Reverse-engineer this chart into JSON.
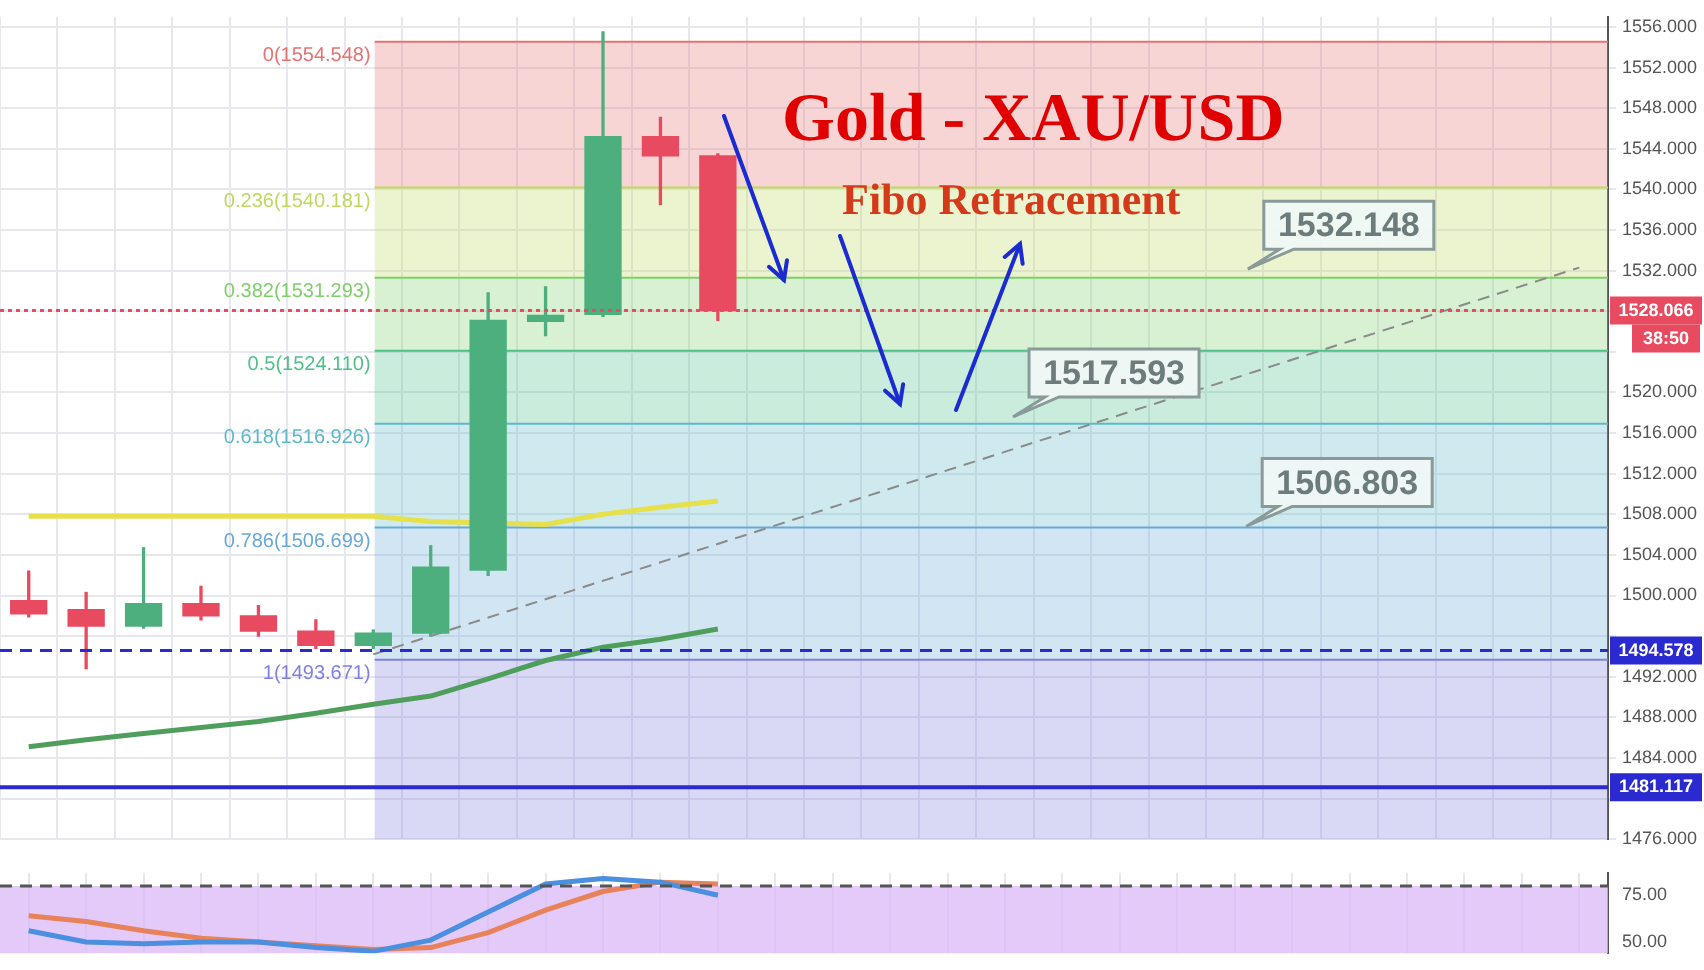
{
  "chart_data": [
    {
      "type": "candlestick",
      "title": "Gold - XAU/USD",
      "subtitle": "Fibo Retracement",
      "categories": [
        null,
        null,
        null,
        null,
        null,
        null,
        null,
        null,
        null,
        null,
        null,
        null,
        null,
        null,
        null,
        null,
        null,
        null,
        null,
        null,
        null,
        null,
        null,
        null,
        null,
        null,
        null,
        null
      ],
      "ohlc": [
        [
          1499.5,
          1502.4,
          1497.9,
          1498.2
        ],
        [
          1498.6,
          1500.3,
          1492.8,
          1497.0
        ],
        [
          1497.0,
          1504.7,
          1496.8,
          1499.2
        ],
        [
          1499.2,
          1500.9,
          1497.6,
          1498.0
        ],
        [
          1498.0,
          1499.0,
          1496.0,
          1496.5
        ],
        [
          1496.5,
          1497.6,
          1494.8,
          1495.1
        ],
        [
          1495.1,
          1496.6,
          1494.8,
          1496.3
        ],
        [
          1496.3,
          1504.9,
          1496.0,
          1502.8
        ],
        [
          1502.5,
          1529.8,
          1502.0,
          1527.1
        ],
        [
          1527.0,
          1530.4,
          1525.6,
          1527.6
        ],
        [
          1527.7,
          1555.5,
          1527.5,
          1545.2
        ],
        [
          1545.2,
          1547.1,
          1538.5,
          1543.3
        ],
        [
          1543.3,
          1543.5,
          1527.1,
          1528.066
        ],
        null,
        null,
        null,
        null,
        null,
        null,
        null,
        null,
        null,
        null,
        null,
        null,
        null,
        null,
        null
      ],
      "colors": [
        "#e84a5f",
        "#e84a5f",
        "#4caf7d",
        "#e84a5f",
        "#e84a5f",
        "#e84a5f",
        "#4caf7d",
        "#4caf7d",
        "#4caf7d",
        "#4caf7d",
        "#4caf7d",
        "#e84a5f",
        "#e84a5f",
        null,
        null,
        null,
        null,
        null,
        null,
        null,
        null,
        null,
        null,
        null,
        null,
        null,
        null,
        null
      ],
      "series": [
        {
          "type": "line",
          "color": "#e6e04a",
          "values": [
            1507.8,
            1507.8,
            1507.8,
            1507.8,
            1507.8,
            1507.8,
            1507.8,
            1507.3,
            null,
            1507.0,
            1508.0,
            1508.7,
            1509.3,
            null,
            null,
            null,
            null,
            null,
            null,
            null,
            null,
            null,
            null,
            null,
            null,
            null,
            null,
            null
          ]
        },
        {
          "type": "line",
          "color": "#4f9e5c",
          "values": [
            1485.1,
            1485.8,
            1486.4,
            1487.0,
            1487.6,
            1488.4,
            1489.3,
            1490.1,
            1491.8,
            1493.6,
            1494.9,
            1495.7,
            1496.7,
            null,
            null,
            null,
            null,
            null,
            null,
            null,
            null,
            null,
            null,
            null,
            null,
            null,
            null,
            null
          ]
        },
        {
          "type": "line",
          "color": "#8a8a8a",
          "line_style": "dashed",
          "values": [
            null,
            null,
            null,
            null,
            null,
            null,
            1494.2,
            null,
            null,
            null,
            null,
            null,
            null,
            null,
            null,
            null,
            null,
            null,
            null,
            null,
            null,
            null,
            null,
            null,
            null,
            null,
            null,
            1532.3
          ]
        }
      ],
      "ylim": [
        1476,
        1557
      ],
      "yticks": [
        {
          "value": 1476,
          "label": "1476.000"
        },
        {
          "value": 1480,
          "label": null
        },
        {
          "value": 1484,
          "label": "1484.000"
        },
        {
          "value": 1488,
          "label": "1488.000"
        },
        {
          "value": 1492,
          "label": "1492.000"
        },
        {
          "value": 1496,
          "label": null
        },
        {
          "value": 1500,
          "label": "1500.000"
        },
        {
          "value": 1504,
          "label": "1504.000"
        },
        {
          "value": 1508,
          "label": "1508.000"
        },
        {
          "value": 1512,
          "label": "1512.000"
        },
        {
          "value": 1516,
          "label": "1516.000"
        },
        {
          "value": 1520,
          "label": "1520.000"
        },
        {
          "value": 1524,
          "label": null
        },
        {
          "value": 1528,
          "label": null
        },
        {
          "value": 1532,
          "label": "1532.000"
        },
        {
          "value": 1536,
          "label": "1536.000"
        },
        {
          "value": 1540,
          "label": "1540.000"
        },
        {
          "value": 1544,
          "label": "1544.000"
        },
        {
          "value": 1548,
          "label": "1548.000"
        },
        {
          "value": 1552,
          "label": "1552.000"
        },
        {
          "value": 1556,
          "label": "1556.000"
        }
      ],
      "bands": [
        {
          "axis": "y",
          "from": 1540.181,
          "to": 1554.548,
          "label": "0(1554.548)",
          "color": "#e57373"
        },
        {
          "axis": "y",
          "from": 1531.293,
          "to": 1540.181,
          "label": "0.236(1540.181)",
          "color": "#c0d860"
        },
        {
          "axis": "y",
          "from": 1524.11,
          "to": 1531.293,
          "label": "0.382(1531.293)",
          "color": "#7fcf6a"
        },
        {
          "axis": "y",
          "from": 1516.926,
          "to": 1524.11,
          "label": "0.5(1524.110)",
          "color": "#4fc08a"
        },
        {
          "axis": "y",
          "from": 1506.699,
          "to": 1516.926,
          "label": "0.618(1516.926)",
          "color": "#5fb8c8"
        },
        {
          "axis": "y",
          "from": 1493.671,
          "to": 1506.699,
          "label": "0.786(1506.699)",
          "color": "#6aa8d8"
        },
        {
          "axis": "y",
          "from": 1476,
          "to": 1493.671,
          "label": "1(1493.671)",
          "color": "#8080e0"
        }
      ],
      "ref_lines": [
        {
          "axis": "y",
          "value": 1528.066,
          "label": "1528.066",
          "color": "#e84a5f",
          "line_style": "dotted"
        },
        {
          "axis": "y",
          "value": 1494.578,
          "label": "1494.578",
          "color": "#2a2ad0",
          "line_style": "dashed"
        },
        {
          "axis": "y",
          "value": 1481.117,
          "label": "1481.117",
          "color": "#2a2ad0",
          "line_style": "solid"
        }
      ],
      "annotations": [
        {
          "text": "1532.148",
          "y": 1532.148
        },
        {
          "text": "1517.593",
          "y": 1517.593
        },
        {
          "text": "1506.803",
          "y": 1506.803
        },
        "38:50"
      ],
      "grid": true,
      "legend": false,
      "marker": "none",
      "tick_labels": "y"
    },
    {
      "type": "line",
      "categories": [
        null,
        null,
        null,
        null,
        null,
        null,
        null,
        null,
        null,
        null,
        null,
        null,
        null,
        null,
        null,
        null,
        null,
        null,
        null,
        null,
        null,
        null,
        null,
        null,
        null,
        null,
        null,
        null
      ],
      "series": [
        {
          "color": "#4a8fe0",
          "values": [
            56,
            50,
            49,
            50,
            50,
            47,
            45,
            51,
            66,
            81,
            84,
            82,
            75,
            null,
            null,
            null,
            null,
            null,
            null,
            null,
            null,
            null,
            null,
            null,
            null,
            null,
            null,
            null
          ]
        },
        {
          "color": "#e8825a",
          "values": [
            64,
            61,
            56,
            52,
            50,
            48,
            46,
            47,
            55,
            67,
            77,
            82,
            81,
            null,
            null,
            null,
            null,
            null,
            null,
            null,
            null,
            null,
            null,
            null,
            null,
            null,
            null,
            null
          ]
        }
      ],
      "ylim": [
        44,
        87
      ],
      "yticks": [
        {
          "value": 50,
          "label": "50.00"
        },
        {
          "value": 75,
          "label": "75.00"
        }
      ],
      "bands": [
        {
          "axis": "y",
          "from": 44,
          "to": 80,
          "color": "#d9b8f5"
        }
      ],
      "ref_lines": [
        {
          "axis": "y",
          "value": 80,
          "color": "#555555",
          "line_style": "dashed"
        }
      ],
      "grid": "x",
      "legend": false,
      "marker": "none",
      "tick_labels": "y"
    }
  ]
}
